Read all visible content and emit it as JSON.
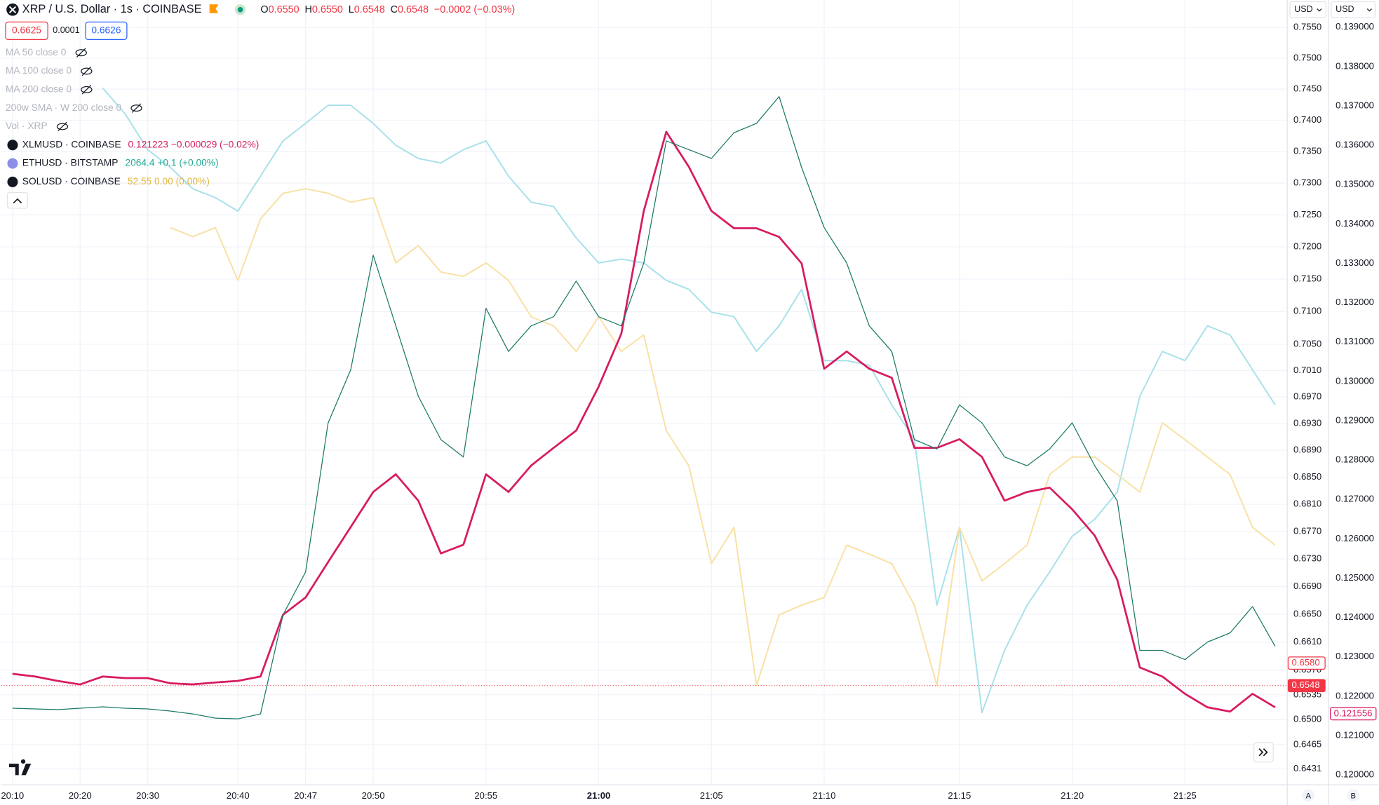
{
  "header": {
    "ohlc": [
      {
        "key": "O",
        "value": "0.6550"
      },
      {
        "key": "H",
        "value": "0.6550"
      },
      {
        "key": "L",
        "value": "0.6548"
      },
      {
        "key": "C",
        "value": "0.6548"
      }
    ],
    "change": "−0.0002 (−0.03%)",
    "bid": "0.6625",
    "spread": "0.0001",
    "ask": "0.6626",
    "indicators": [
      "MA 50 close 0",
      "MA 100 close 0",
      "MA 200 close 0",
      "200w SMA · W 200 close 0",
      "Vol · XRP"
    ],
    "currency_left": "USD",
    "currency_right": "USD",
    "scale_buttons": [
      "A",
      "B"
    ]
  },
  "chart_data": {
    "type": "line",
    "ylog": true,
    "grid": true,
    "categories": [
      "20:10",
      null,
      null,
      "20:20",
      null,
      null,
      "20:30",
      null,
      null,
      null,
      "20:40",
      null,
      null,
      "20:47",
      null,
      null,
      "20:50",
      null,
      null,
      null,
      null,
      "20:55",
      null,
      null,
      null,
      null,
      "21:00",
      null,
      null,
      null,
      null,
      "21:05",
      null,
      null,
      null,
      null,
      "21:10",
      null,
      null,
      null,
      null,
      null,
      "21:15",
      null,
      null,
      null,
      null,
      "21:20",
      null,
      null,
      null,
      null,
      "21:25",
      null,
      null,
      null,
      null
    ],
    "ylim": [
      0.6409,
      0.7595
    ],
    "yticks": [
      {
        "value": 0.755,
        "label": "0.7550"
      },
      {
        "value": 0.75,
        "label": "0.7500"
      },
      {
        "value": 0.745,
        "label": "0.7450"
      },
      {
        "value": 0.74,
        "label": "0.7400"
      },
      {
        "value": 0.735,
        "label": "0.7350"
      },
      {
        "value": 0.73,
        "label": "0.7300"
      },
      {
        "value": 0.725,
        "label": "0.7250"
      },
      {
        "value": 0.72,
        "label": "0.7200"
      },
      {
        "value": 0.715,
        "label": "0.7150"
      },
      {
        "value": 0.71,
        "label": "0.7100"
      },
      {
        "value": 0.705,
        "label": "0.7050"
      },
      {
        "value": 0.701,
        "label": "0.7010"
      },
      {
        "value": 0.697,
        "label": "0.6970"
      },
      {
        "value": 0.693,
        "label": "0.6930"
      },
      {
        "value": 0.689,
        "label": "0.6890"
      },
      {
        "value": 0.685,
        "label": "0.6850"
      },
      {
        "value": 0.681,
        "label": "0.6810"
      },
      {
        "value": 0.677,
        "label": "0.6770"
      },
      {
        "value": 0.673,
        "label": "0.6730"
      },
      {
        "value": 0.669,
        "label": "0.6690"
      },
      {
        "value": 0.665,
        "label": "0.6650"
      },
      {
        "value": 0.661,
        "label": "0.6610"
      },
      {
        "value": 0.657,
        "label": "0.6570"
      },
      {
        "value": 0.6535,
        "label": "0.6535"
      },
      {
        "value": 0.65,
        "label": "0.6500"
      },
      {
        "value": 0.6465,
        "label": "0.6465"
      },
      {
        "value": 0.6431,
        "label": "0.6431"
      }
    ],
    "y2lim": [
      0.11975,
      0.13969
    ],
    "y2ticks": [
      {
        "value": 0.139,
        "label": "0.139000"
      },
      {
        "value": 0.138,
        "label": "0.138000"
      },
      {
        "value": 0.137,
        "label": "0.137000"
      },
      {
        "value": 0.136,
        "label": "0.136000"
      },
      {
        "value": 0.135,
        "label": "0.135000"
      },
      {
        "value": 0.134,
        "label": "0.134000"
      },
      {
        "value": 0.133,
        "label": "0.133000"
      },
      {
        "value": 0.132,
        "label": "0.132000"
      },
      {
        "value": 0.131,
        "label": "0.131000"
      },
      {
        "value": 0.13,
        "label": "0.130000"
      },
      {
        "value": 0.129,
        "label": "0.129000"
      },
      {
        "value": 0.128,
        "label": "0.128000"
      },
      {
        "value": 0.127,
        "label": "0.127000"
      },
      {
        "value": 0.126,
        "label": "0.126000"
      },
      {
        "value": 0.125,
        "label": "0.125000"
      },
      {
        "value": 0.124,
        "label": "0.124000"
      },
      {
        "value": 0.123,
        "label": "0.123000"
      },
      {
        "value": 0.122,
        "label": "0.122000"
      },
      {
        "value": 0.121,
        "label": "0.121000"
      },
      {
        "value": 0.12,
        "label": "0.120000"
      }
    ],
    "series": [
      {
        "name": "XRP / U.S. Dollar · 1s · COINBASE",
        "color": "#1b7a66",
        "width": 1,
        "values": [
          0.6516,
          0.6515,
          0.6514,
          0.6516,
          0.6518,
          0.6516,
          0.6515,
          0.6512,
          0.6508,
          0.6502,
          0.6501,
          0.6508,
          0.6649,
          0.6711,
          0.6931,
          0.7011,
          0.7187,
          0.7078,
          0.6971,
          0.6906,
          0.688,
          0.7105,
          0.7039,
          0.7078,
          0.7092,
          0.7147,
          0.7092,
          0.7078,
          0.7175,
          0.7367,
          0.7353,
          0.7339,
          0.738,
          0.7395,
          0.7438,
          0.7325,
          0.723,
          0.7175,
          0.7078,
          0.7039,
          0.6906,
          0.6892,
          0.6958,
          0.6931,
          0.688,
          0.6867,
          0.6892,
          0.6931,
          0.6867,
          0.6815,
          0.6598,
          0.6598,
          0.6585,
          0.661,
          0.6623,
          0.6661,
          0.6604
        ]
      },
      {
        "name": "XLMUSD · COINBASE",
        "legend_value": "0.121223 −0.000029 (−0.02%)",
        "color": "#d81b60",
        "width": 2.2,
        "axis": "y2",
        "values": [
          0.12257,
          0.1225,
          0.12239,
          0.1223,
          0.1225,
          0.12246,
          0.12246,
          0.12233,
          0.1223,
          0.12235,
          0.12239,
          0.1225,
          0.12407,
          0.12451,
          0.12541,
          0.1263,
          0.12719,
          0.12764,
          0.12697,
          0.12563,
          0.12585,
          0.12764,
          0.12719,
          0.12786,
          0.12831,
          0.12875,
          0.12987,
          0.13121,
          0.13433,
          0.13634,
          0.13545,
          0.13433,
          0.13389,
          0.13389,
          0.13367,
          0.133,
          0.13032,
          0.13076,
          0.13032,
          0.13009,
          0.12831,
          0.12831,
          0.12853,
          0.12808,
          0.12697,
          0.12719,
          0.1273,
          0.12675,
          0.12608,
          0.12496,
          0.12273,
          0.1225,
          0.12206,
          0.12172,
          0.12161,
          0.12206,
          0.12172
        ]
      },
      {
        "name": "ETHUSD · BITSTAMP",
        "legend_value": "2064.4 +0.1 (+0.00%)",
        "color": "#a9e1ea",
        "width": 1.6,
        "values": [
          null,
          null,
          null,
          null,
          0.7452,
          0.741,
          0.7353,
          0.7325,
          0.7291,
          0.7277,
          0.7256,
          0.7311,
          0.7367,
          0.7395,
          0.7424,
          0.7424,
          0.7395,
          0.736,
          0.7339,
          0.7332,
          0.7353,
          0.7367,
          0.7311,
          0.727,
          0.7263,
          0.7214,
          0.7175,
          0.7181,
          0.7175,
          0.7148,
          0.7134,
          0.7099,
          0.7092,
          0.7039,
          0.7078,
          0.7134,
          0.7025,
          0.7025,
          0.7018,
          0.6958,
          0.6906,
          0.6663,
          0.6776,
          0.651,
          0.6598,
          0.6663,
          0.6711,
          0.6763,
          0.6788,
          0.6828,
          0.6971,
          0.7039,
          0.7025,
          0.7078,
          0.7064,
          0.7011,
          0.6958
        ]
      },
      {
        "name": "SOLUSD · COINBASE",
        "legend_value": "52.55 0.00 (0.00%)",
        "color": "#f9e1a5",
        "width": 1.6,
        "values": [
          null,
          null,
          null,
          null,
          null,
          null,
          null,
          0.723,
          0.7216,
          0.723,
          0.7148,
          0.7244,
          0.7284,
          0.7291,
          0.7284,
          0.727,
          0.7277,
          0.7175,
          0.7202,
          0.7161,
          0.7154,
          0.7175,
          0.7148,
          0.7092,
          0.7078,
          0.7039,
          0.7092,
          0.7039,
          0.7064,
          0.6919,
          0.6867,
          0.6723,
          0.6776,
          0.6548,
          0.6649,
          0.6663,
          0.6674,
          0.675,
          0.6737,
          0.6723,
          0.6663,
          0.6548,
          0.6776,
          0.6698,
          0.6723,
          0.675,
          0.6854,
          0.688,
          0.688,
          0.6854,
          0.6828,
          0.6931,
          0.6906,
          0.688,
          0.6854,
          0.6776,
          0.675
        ]
      }
    ],
    "price_tags": [
      {
        "value": 0.658,
        "label": "0.6580",
        "axis": "y",
        "color": "#f23645",
        "style": "outline"
      },
      {
        "value": 0.6548,
        "label": "0.6548",
        "axis": "y",
        "color": "#f23645",
        "style": "filled"
      },
      {
        "value": 0.121556,
        "label": "0.121556",
        "axis": "y2",
        "color": "#d81b60",
        "style": "outline"
      }
    ]
  }
}
